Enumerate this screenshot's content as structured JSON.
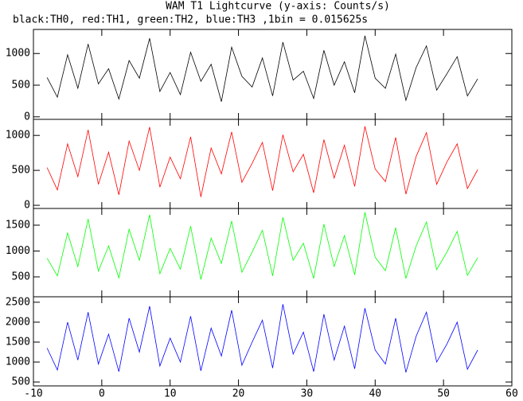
{
  "chart_data": [
    {
      "type": "line",
      "title": "WAM T1 Lightcurve (y-axis: Counts/s)",
      "subtitle": "black:TH0, red:TH1, green:TH2, blue:TH3 ,1bin = 0.015625s",
      "x": [
        -8,
        -6.5,
        -5,
        -3.5,
        -2,
        -0.5,
        1,
        2.5,
        4,
        5.5,
        7,
        8.5,
        10,
        11.5,
        13,
        14.5,
        16,
        17.5,
        19,
        20.5,
        22,
        23.5,
        25,
        26.5,
        28,
        29.5,
        31,
        32.5,
        34,
        35.5,
        37,
        38.5,
        40,
        41.5,
        43,
        44.5,
        46,
        47.5,
        49,
        50.5,
        52,
        53.5,
        55
      ],
      "series": [
        {
          "color": "#000000",
          "values": [
            620,
            310,
            980,
            450,
            1150,
            520,
            760,
            280,
            890,
            610,
            1240,
            400,
            700,
            350,
            1020,
            560,
            830,
            240,
            1100,
            640,
            470,
            930,
            330,
            1180,
            580,
            720,
            290,
            1050,
            500,
            870,
            380,
            1280,
            610,
            450,
            990,
            260,
            780,
            1120,
            420,
            680,
            950,
            330,
            600
          ]
        }
      ],
      "xlim": [
        -10,
        60
      ],
      "xticks": [
        -10,
        0,
        10,
        20,
        30,
        40,
        50,
        60
      ],
      "ylim": [
        -40,
        1380
      ],
      "yticks": [
        0,
        500,
        1000
      ]
    },
    {
      "type": "line",
      "x": [
        -8,
        -6.5,
        -5,
        -3.5,
        -2,
        -0.5,
        1,
        2.5,
        4,
        5.5,
        7,
        8.5,
        10,
        11.5,
        13,
        14.5,
        16,
        17.5,
        19,
        20.5,
        22,
        23.5,
        25,
        26.5,
        28,
        29.5,
        31,
        32.5,
        34,
        35.5,
        37,
        38.5,
        40,
        41.5,
        43,
        44.5,
        46,
        47.5,
        49,
        50.5,
        52,
        53.5,
        55
      ],
      "series": [
        {
          "color": "#ff0000",
          "values": [
            540,
            220,
            880,
            410,
            1080,
            300,
            760,
            150,
            920,
            500,
            1120,
            260,
            690,
            380,
            980,
            120,
            820,
            450,
            1050,
            330,
            600,
            900,
            210,
            1010,
            480,
            730,
            180,
            940,
            390,
            860,
            270,
            1130,
            520,
            340,
            970,
            160,
            700,
            1040,
            300,
            620,
            880,
            240,
            510
          ]
        }
      ],
      "xlim": [
        -10,
        60
      ],
      "xticks": [
        -10,
        0,
        10,
        20,
        30,
        40,
        50,
        60
      ],
      "ylim": [
        -45,
        1230
      ],
      "yticks": [
        0,
        500,
        1000
      ]
    },
    {
      "type": "line",
      "x": [
        -8,
        -6.5,
        -5,
        -3.5,
        -2,
        -0.5,
        1,
        2.5,
        4,
        5.5,
        7,
        8.5,
        10,
        11.5,
        13,
        14.5,
        16,
        17.5,
        19,
        20.5,
        22,
        23.5,
        25,
        26.5,
        28,
        29.5,
        31,
        32.5,
        34,
        35.5,
        37,
        38.5,
        40,
        41.5,
        43,
        44.5,
        46,
        47.5,
        49,
        50.5,
        52,
        53.5,
        55
      ],
      "series": [
        {
          "color": "#00ff00",
          "values": [
            860,
            520,
            1350,
            700,
            1620,
            610,
            1100,
            480,
            1420,
            820,
            1700,
            560,
            1050,
            650,
            1480,
            450,
            1250,
            760,
            1580,
            590,
            980,
            1400,
            520,
            1650,
            820,
            1150,
            470,
            1520,
            700,
            1300,
            540,
            1750,
            880,
            620,
            1450,
            470,
            1100,
            1560,
            640,
            980,
            1380,
            530,
            870
          ]
        }
      ],
      "xlim": [
        -10,
        60
      ],
      "xticks": [
        -10,
        0,
        10,
        20,
        30,
        40,
        50,
        60
      ],
      "ylim": [
        115,
        1823
      ],
      "yticks": [
        500,
        1000,
        1500
      ]
    },
    {
      "type": "line",
      "x": [
        -8,
        -6.5,
        -5,
        -3.5,
        -2,
        -0.5,
        1,
        2.5,
        4,
        5.5,
        7,
        8.5,
        10,
        11.5,
        13,
        14.5,
        16,
        17.5,
        19,
        20.5,
        22,
        23.5,
        25,
        26.5,
        28,
        29.5,
        31,
        32.5,
        34,
        35.5,
        37,
        38.5,
        40,
        41.5,
        43,
        44.5,
        46,
        47.5,
        49,
        50.5,
        52,
        53.5,
        55
      ],
      "series": [
        {
          "color": "#0000ff",
          "values": [
            1350,
            800,
            2000,
            1050,
            2250,
            950,
            1700,
            760,
            2100,
            1250,
            2400,
            900,
            1600,
            1000,
            2150,
            780,
            1850,
            1150,
            2300,
            920,
            1500,
            2050,
            850,
            2450,
            1200,
            1750,
            760,
            2200,
            1050,
            1900,
            830,
            2350,
            1300,
            950,
            2100,
            740,
            1650,
            2250,
            1000,
            1450,
            2000,
            820,
            1300
          ]
        }
      ],
      "xlim": [
        -10,
        60
      ],
      "xticks": [
        -10,
        0,
        10,
        20,
        30,
        40,
        50,
        60
      ],
      "ylim": [
        402,
        2637
      ],
      "yticks": [
        500,
        1000,
        1500,
        2000,
        2500
      ]
    }
  ]
}
